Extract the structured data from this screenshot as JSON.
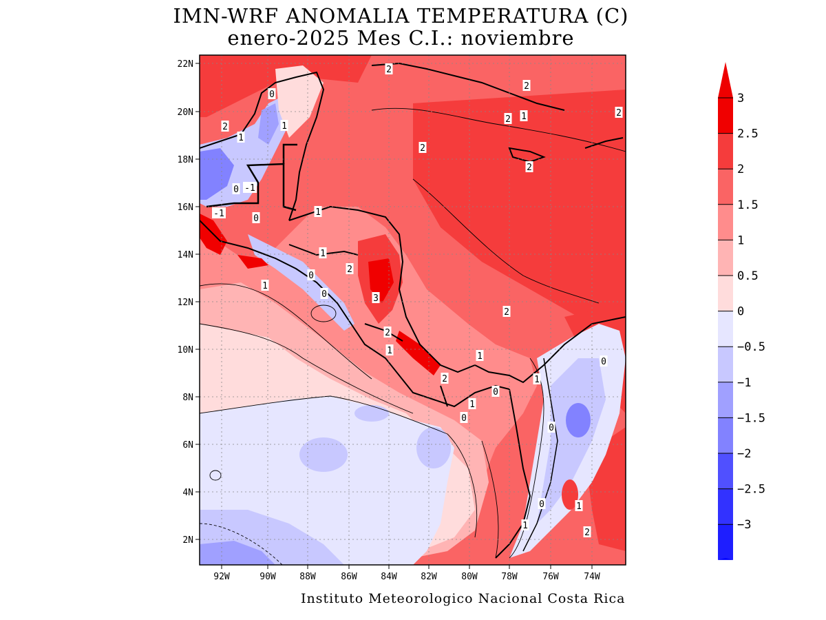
{
  "map": {
    "title_line1": "IMN-WRF  ANOMALIA TEMPERATURA (C)",
    "title_line2": "enero-2025 Mes C.I.: noviembre",
    "credit": "Instituto Meteorologico Nacional Costa Rica",
    "lat_labels": [
      "22N",
      "20N",
      "18N",
      "16N",
      "14N",
      "12N",
      "10N",
      "8N",
      "6N",
      "4N",
      "2N"
    ],
    "lon_labels": [
      "92W",
      "90W",
      "88W",
      "86W",
      "84W",
      "82W",
      "80W",
      "78W",
      "76W",
      "74W"
    ],
    "contour_labels": [
      "2",
      "2",
      "0",
      "1",
      "1",
      "2",
      "2",
      "1",
      "2",
      "2",
      "2",
      "-1",
      "0",
      "1",
      "-1",
      "0",
      "1",
      "1",
      "2",
      "0",
      "0",
      "3",
      "1",
      "2",
      "2",
      "2",
      "1",
      "1",
      "1",
      "0",
      "1",
      "0",
      "0",
      "0",
      "1",
      "0",
      "2"
    ],
    "colorbar": {
      "tick_labels": [
        "3",
        "2.5",
        "2",
        "1.5",
        "1",
        "0.5",
        "0",
        "−0.5",
        "−1",
        "−1.5",
        "−2",
        "−2.5",
        "−3"
      ],
      "colors": [
        "#f00000",
        "#f53c3c",
        "#fa6464",
        "#ff8c8c",
        "#ffb4b4",
        "#ffdcdc",
        "#e6e6ff",
        "#c8c8ff",
        "#a0a0ff",
        "#8282ff",
        "#5050ff",
        "#3232ff",
        "#1e1eff"
      ],
      "over_color": "#ee0000",
      "under_color": "#0000ff"
    }
  }
}
